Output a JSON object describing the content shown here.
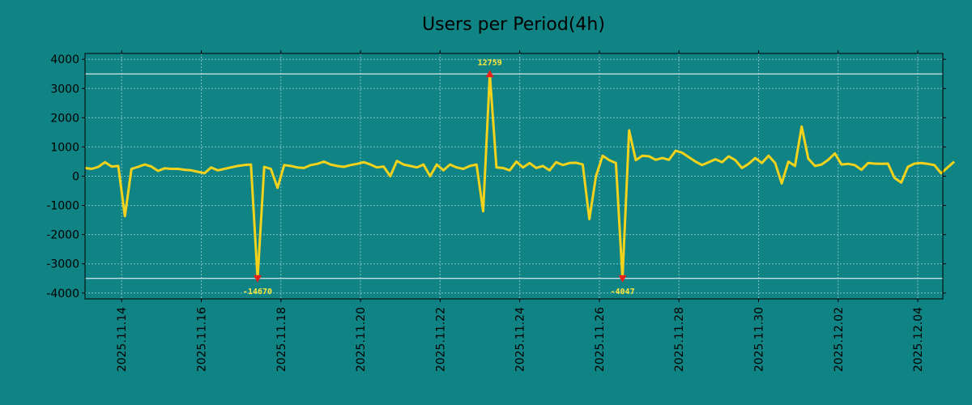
{
  "chart_data": {
    "type": "line",
    "title": "Users per Period(4h)",
    "xlabel": "",
    "ylabel": "",
    "ylim": [
      -4200,
      4200
    ],
    "y_ticks": [
      4000,
      3000,
      2000,
      1000,
      0,
      -1000,
      -2000,
      -3000,
      -4000
    ],
    "y_tick_labels": [
      "4000",
      "3000",
      "2000",
      "1000",
      "0",
      "-1000",
      "-2000",
      "-3000",
      "-4000"
    ],
    "x_range_days": [
      0,
      21.55
    ],
    "x_origin": "2025.11.13 02:00",
    "x_ticks": [
      {
        "label": "2025.11.14",
        "day": 0.92
      },
      {
        "label": "2025.11.16",
        "day": 2.92
      },
      {
        "label": "2025.11.18",
        "day": 4.92
      },
      {
        "label": "2025.11.20",
        "day": 6.92
      },
      {
        "label": "2025.11.22",
        "day": 8.92
      },
      {
        "label": "2025.11.24",
        "day": 10.92
      },
      {
        "label": "2025.11.26",
        "day": 12.92
      },
      {
        "label": "2025.11.28",
        "day": 14.92
      },
      {
        "label": "2025.11.30",
        "day": 16.92
      },
      {
        "label": "2025.12.02",
        "day": 18.92
      },
      {
        "label": "2025.12.04",
        "day": 20.92
      }
    ],
    "clip_lines": [
      3500,
      -3500
    ],
    "series": [
      {
        "name": "Users",
        "color": "#F2D21A",
        "step_days": 0.1667,
        "values": [
          280,
          250,
          320,
          480,
          330,
          350,
          -1370,
          250,
          320,
          400,
          330,
          180,
          270,
          250,
          250,
          220,
          200,
          150,
          100,
          300,
          200,
          250,
          300,
          350,
          380,
          400,
          -3500,
          320,
          250,
          -400,
          380,
          350,
          300,
          280,
          380,
          420,
          500,
          400,
          350,
          320,
          380,
          420,
          480,
          400,
          300,
          330,
          0,
          520,
          400,
          350,
          300,
          400,
          0,
          400,
          200,
          400,
          300,
          250,
          350,
          400,
          -1200,
          3500,
          300,
          280,
          200,
          500,
          300,
          450,
          280,
          350,
          200,
          480,
          380,
          450,
          460,
          400,
          -1470,
          0,
          700,
          550,
          450,
          -3500,
          1570,
          550,
          700,
          680,
          560,
          620,
          560,
          870,
          800,
          650,
          500,
          380,
          480,
          580,
          480,
          680,
          550,
          280,
          420,
          620,
          450,
          700,
          450,
          -250,
          500,
          350,
          1700,
          600,
          350,
          400,
          560,
          780,
          400,
          420,
          380,
          220,
          450,
          430,
          420,
          430,
          -60,
          -220,
          320,
          430,
          450,
          420,
          380,
          100,
          300,
          500
        ]
      }
    ],
    "annotations": [
      {
        "text": "12759",
        "x_index": 61,
        "y": 3500,
        "position": "above",
        "marker": "up-triangle"
      },
      {
        "text": "-14670",
        "x_index": 26,
        "y": -3500,
        "position": "below",
        "marker": "down-triangle"
      },
      {
        "text": "-4047",
        "x_index": 81,
        "y": -3500,
        "position": "below",
        "marker": "down-triangle"
      }
    ],
    "grid": true,
    "legend": "none"
  },
  "colors": {
    "background": "#108484",
    "plot_area": "#108484",
    "grid": "#7FBFBF",
    "clip_line": "#FFFFFF",
    "line": "#F2D21A",
    "marker": "#E8201C",
    "annotation_text": "#FFE83C",
    "axis": "#000000"
  }
}
